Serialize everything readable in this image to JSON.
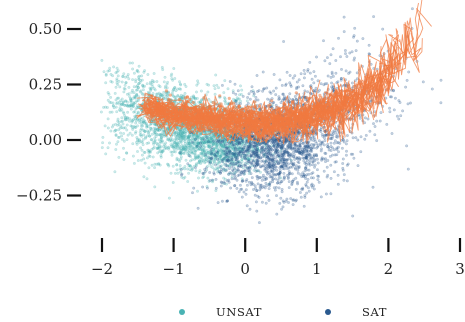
{
  "chart_data": {
    "type": "scatter",
    "title": "",
    "xlabel": "",
    "ylabel": "",
    "xlim": [
      -2.05,
      3.05
    ],
    "ylim": [
      -0.43,
      0.6
    ],
    "x_ticks": [
      -2,
      -1,
      0,
      1,
      2,
      3
    ],
    "x_tick_labels": [
      "−2",
      "−1",
      "0",
      "1",
      "2",
      "3"
    ],
    "y_ticks": [
      0.5,
      0.25,
      0.0,
      -0.25
    ],
    "y_tick_labels": [
      "0.50",
      "0.25",
      "0.00",
      "−0.25"
    ],
    "grid": false,
    "legend_position": "bottom-center",
    "series": [
      {
        "name": "UNSAT",
        "kind": "scatter",
        "color": "#4ab3b4",
        "clusters": [
          {
            "cx": -0.8,
            "cy": 0.06,
            "sx": 0.45,
            "sy": 0.08,
            "n": 1500
          },
          {
            "cx": -0.35,
            "cy": -0.02,
            "sx": 0.3,
            "sy": 0.07,
            "n": 800
          },
          {
            "cx": -1.35,
            "cy": 0.16,
            "sx": 0.3,
            "sy": 0.07,
            "n": 400
          },
          {
            "cx": -1.7,
            "cy": 0.27,
            "sx": 0.15,
            "sy": 0.04,
            "n": 40
          }
        ]
      },
      {
        "name": "SAT",
        "kind": "scatter",
        "color": "#2a5a8f",
        "clusters": [
          {
            "cx": 0.35,
            "cy": -0.04,
            "sx": 0.45,
            "sy": 0.1,
            "n": 1600
          },
          {
            "cx": 0.7,
            "cy": 0.08,
            "sx": 0.4,
            "sy": 0.08,
            "n": 500
          },
          {
            "cx": 1.3,
            "cy": 0.16,
            "sx": 0.4,
            "sy": 0.09,
            "n": 250
          },
          {
            "cx": 1.75,
            "cy": 0.3,
            "sx": 0.4,
            "sy": 0.12,
            "n": 100
          }
        ]
      },
      {
        "name": "",
        "kind": "trajectories",
        "color": "#f07a40",
        "main_path": [
          [
            -1.4,
            0.15
          ],
          [
            -1.0,
            0.12
          ],
          [
            -0.6,
            0.1
          ],
          [
            -0.2,
            0.08
          ],
          [
            0.2,
            0.08
          ],
          [
            0.6,
            0.09
          ],
          [
            1.0,
            0.12
          ],
          [
            1.3,
            0.16
          ],
          [
            1.6,
            0.21
          ],
          [
            1.85,
            0.26
          ],
          [
            2.0,
            0.32
          ],
          [
            2.2,
            0.4
          ],
          [
            2.4,
            0.5
          ],
          [
            2.6,
            0.56
          ]
        ],
        "traces": 45
      }
    ]
  },
  "legend": {
    "items": [
      {
        "label": "UNSAT",
        "color": "#4ab3b4"
      },
      {
        "label": "SAT",
        "color": "#2a5a8f"
      }
    ]
  }
}
